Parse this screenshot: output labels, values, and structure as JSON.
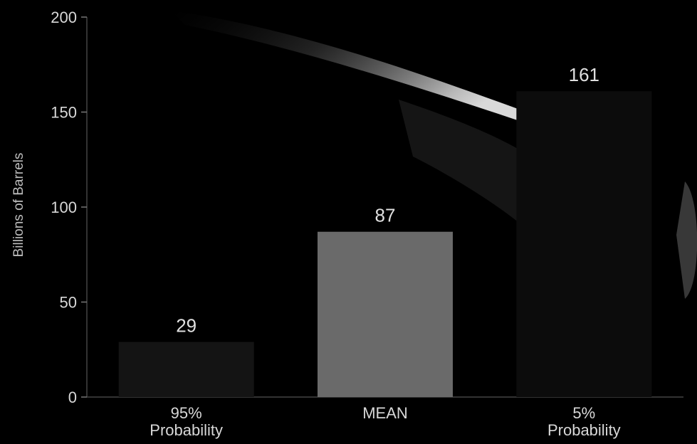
{
  "chart_data": {
    "type": "bar",
    "ylabel": "Billions of Barrels",
    "ylim": [
      0,
      200
    ],
    "yticks": [
      0,
      50,
      100,
      150,
      200
    ],
    "categories": [
      {
        "line1": "95%",
        "line2": "Probability"
      },
      {
        "line1": "MEAN",
        "line2": ""
      },
      {
        "line1": "5%",
        "line2": "Probability"
      }
    ],
    "values": [
      29,
      87,
      161
    ],
    "value_labels": [
      "29",
      "87",
      "161"
    ],
    "bar_colors": [
      "#141414",
      "#6a6a6a",
      "#0c0c0c"
    ],
    "background": "#000000",
    "grid": false,
    "legend": "none"
  }
}
